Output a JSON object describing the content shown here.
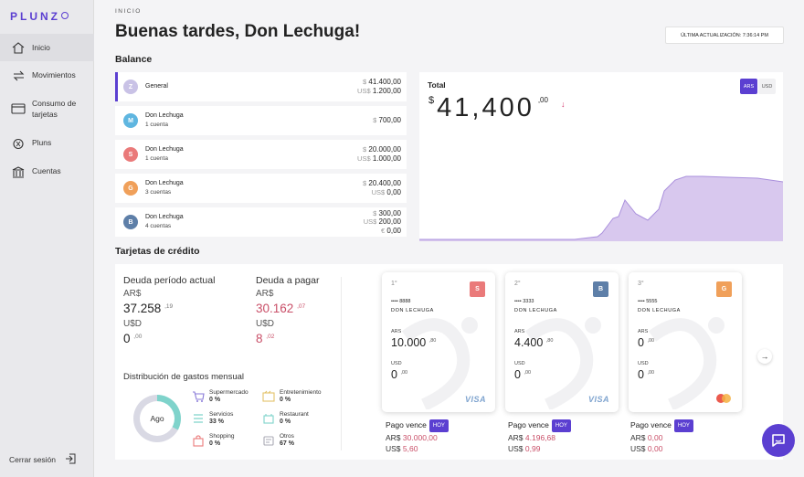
{
  "brand": {
    "name": "PLUNZ"
  },
  "nav": {
    "items": [
      {
        "label": "Inicio",
        "icon": "home-icon"
      },
      {
        "label": "Movimientos",
        "icon": "transfer-icon"
      },
      {
        "label": "Consumo de tarjetas",
        "icon": "card-icon"
      },
      {
        "label": "Pluns",
        "icon": "coins-icon"
      },
      {
        "label": "Cuentas",
        "icon": "bank-icon"
      }
    ],
    "logout": "Cerrar sesión"
  },
  "header": {
    "breadcrumb": "INICIO",
    "greeting": "Buenas tardes, Don Lechuga!",
    "last_update": "ÚLTIMA ACTUALIZACIÓN: 7:36:14 PM"
  },
  "balance": {
    "title": "Balance",
    "accounts": [
      {
        "initial": "Z",
        "color": "#c9c2e6",
        "name": "General",
        "sub": "",
        "lines": [
          {
            "cur": "$",
            "val": "41.400,00"
          },
          {
            "cur": "US$",
            "val": "1.200,00"
          }
        ]
      },
      {
        "initial": "M",
        "color": "#5fb6e0",
        "name": "Don Lechuga",
        "sub": "1 cuenta",
        "lines": [
          {
            "cur": "$",
            "val": "700,00"
          }
        ]
      },
      {
        "initial": "S",
        "color": "#ea7a7a",
        "name": "Don Lechuga",
        "sub": "1 cuenta",
        "lines": [
          {
            "cur": "$",
            "val": "20.000,00"
          },
          {
            "cur": "US$",
            "val": "1.000,00"
          }
        ]
      },
      {
        "initial": "G",
        "color": "#f0a05a",
        "name": "Don Lechuga",
        "sub": "3 cuentas",
        "lines": [
          {
            "cur": "$",
            "val": "20.400,00"
          },
          {
            "cur": "US$",
            "val": "0,00"
          }
        ]
      },
      {
        "initial": "B",
        "color": "#5e7fa8",
        "name": "Don Lechuga",
        "sub": "4 cuentas",
        "lines": [
          {
            "cur": "$",
            "val": "300,00"
          },
          {
            "cur": "US$",
            "val": "200,00"
          },
          {
            "cur": "€",
            "val": "0,00"
          }
        ]
      }
    ]
  },
  "total": {
    "label": "Total",
    "currency_symbol": "$",
    "value": "41,400",
    "decimals": ",00",
    "trend_icon": "↓",
    "toggle_ars": "ARS",
    "toggle_usd": "USD",
    "fill_color": "#d4c2ec",
    "line_color": "#a98fdc"
  },
  "credit": {
    "title": "Tarjetas de crédito",
    "current_label": "Deuda período actual",
    "due_label": "Deuda a pagar",
    "ars_label": "AR$",
    "usd_label": "U$D",
    "current_ars": "37.258",
    "current_ars_dec": ",19",
    "current_usd": "0",
    "current_usd_dec": ",00",
    "due_ars": "30.162",
    "due_ars_dec": ",07",
    "due_usd": "8",
    "due_usd_dec": ",02",
    "dist_title": "Distribución de gastos mensual",
    "donut_center": "Ago",
    "categories": [
      {
        "name": "Supermercado",
        "pct": "0 %",
        "icon": "cart-icon",
        "color": "#8a7bd8"
      },
      {
        "name": "Entretenimiento",
        "pct": "0 %",
        "icon": "ticket-icon",
        "color": "#e3c36a"
      },
      {
        "name": "Servicios",
        "pct": "33 %",
        "icon": "services-icon",
        "color": "#7fd3cb"
      },
      {
        "name": "Restaurant",
        "pct": "0 %",
        "icon": "restaurant-icon",
        "color": "#7fd3cb"
      },
      {
        "name": "Shopping",
        "pct": "0 %",
        "icon": "bag-icon",
        "color": "#ea7a7a"
      },
      {
        "name": "Otros",
        "pct": "67 %",
        "icon": "other-icon",
        "color": "#aaaab4"
      }
    ],
    "cards": [
      {
        "index": "1°",
        "badge": "S",
        "badge_color": "#ea7a7a",
        "number": "•••• 8888",
        "holder": "DON LECHUGA",
        "ars_label": "ARS",
        "ars": "10.000",
        "ars_dec": ",80",
        "usd_label": "USD",
        "usd": "0",
        "usd_dec": ",00",
        "brand": "VISA",
        "due_label": "Pago vence",
        "due_tag": "HOY",
        "due_ars_cur": "AR$",
        "due_ars": "30.000,00",
        "due_usd_cur": "US$",
        "due_usd": "5,60"
      },
      {
        "index": "2°",
        "badge": "B",
        "badge_color": "#5e7fa8",
        "number": "•••• 3333",
        "holder": "DON LECHUGA",
        "ars_label": "ARS",
        "ars": "4.400",
        "ars_dec": ",80",
        "usd_label": "USD",
        "usd": "0",
        "usd_dec": ",00",
        "brand": "VISA",
        "due_label": "Pago vence",
        "due_tag": "HOY",
        "due_ars_cur": "AR$",
        "due_ars": "4.196,68",
        "due_usd_cur": "US$",
        "due_usd": "0,99"
      },
      {
        "index": "3°",
        "badge": "G",
        "badge_color": "#f0a05a",
        "number": "•••• 5555",
        "holder": "DON LECHUGA",
        "ars_label": "ARS",
        "ars": "0",
        "ars_dec": ",00",
        "usd_label": "USD",
        "usd": "0",
        "usd_dec": ",00",
        "brand": "mastercard",
        "due_label": "Pago vence",
        "due_tag": "HOY",
        "due_ars_cur": "AR$",
        "due_ars": "0,00",
        "due_usd_cur": "US$",
        "due_usd": "0,00"
      }
    ],
    "next_icon": "→"
  }
}
